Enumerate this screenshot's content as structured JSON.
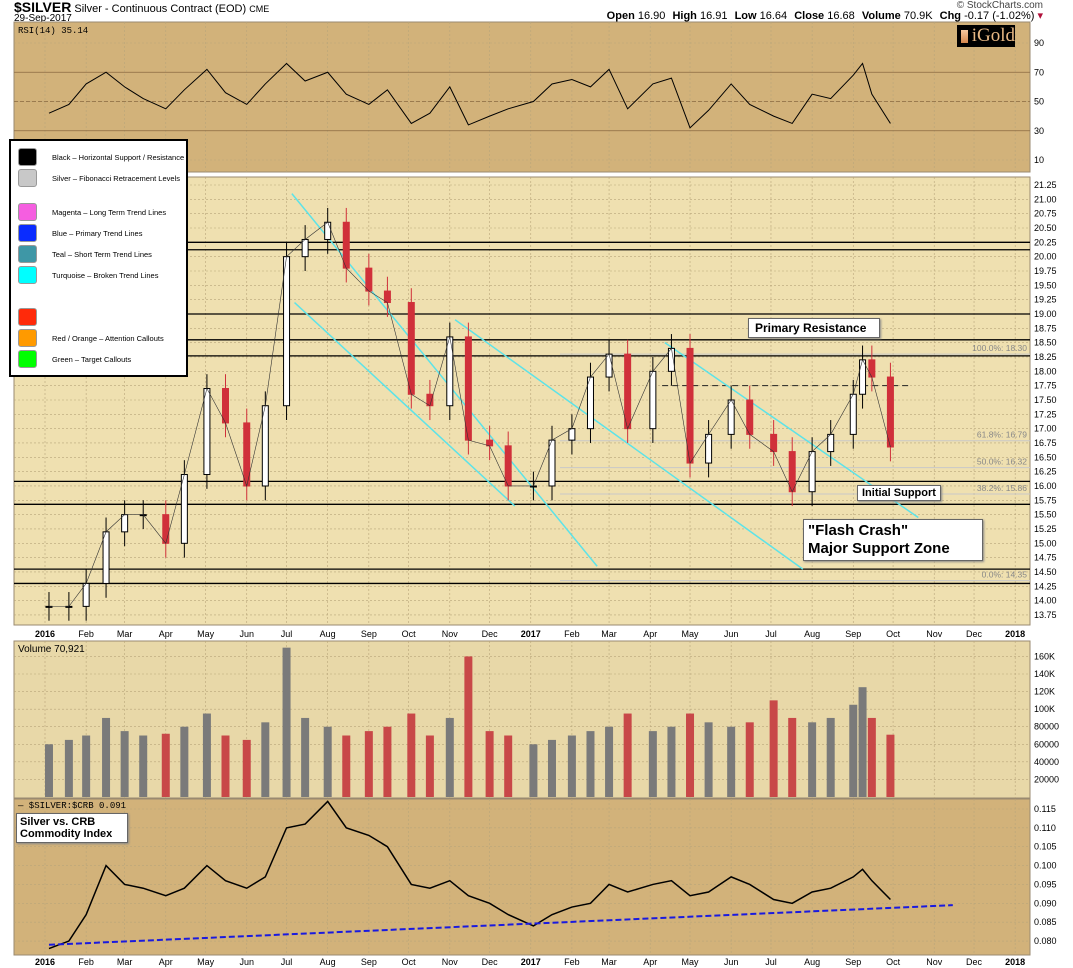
{
  "header": {
    "symbol": "$SILVER",
    "description": "Silver - Continuous Contract (EOD)",
    "exchange": "CME",
    "date": "29-Sep-2017",
    "copyright": "© StockCharts.com",
    "open_label": "Open",
    "open": "16.90",
    "high_label": "High",
    "high": "16.91",
    "low_label": "Low",
    "low": "16.64",
    "close_label": "Close",
    "close": "16.68",
    "volume_label": "Volume",
    "volume": "70.9K",
    "chg_label": "Chg",
    "chg": "-0.17 (-1.02%)",
    "chg_direction": "down"
  },
  "logo": "iGold",
  "legend": [
    {
      "color": "#000000",
      "label": "Black – Horizontal Support / Resistance"
    },
    {
      "color": "#c8c8c8",
      "label": "Silver – Fibonacci Retracement Levels"
    },
    {
      "color": "#f55ee0",
      "label": "Magenta – Long Term Trend Lines"
    },
    {
      "color": "#0a2cff",
      "label": "Blue – Primary Trend Lines"
    },
    {
      "color": "#3e97a6",
      "label": "Teal – Short Term Trend Lines"
    },
    {
      "color": "#00ffff",
      "label": "Turquoise – Broken Trend Lines"
    },
    {
      "color": "#ff2a0a",
      "label": ""
    },
    {
      "color": "#ff9a00",
      "label": "Red / Orange – Attention Callouts"
    },
    {
      "color": "#00ff00",
      "label": "Green – Target Callouts"
    }
  ],
  "callouts": {
    "primary_resistance": "Primary Resistance",
    "initial_support": "Initial Support",
    "flash_crash_1": "\"Flash Crash\"",
    "flash_crash_2": "Major Support Zone",
    "crb_1": "Silver vs. CRB",
    "crb_2": "Commodity Index"
  },
  "colors": {
    "panel_bg": "#d2b27a",
    "price_bg": "#efe0b0",
    "volume_bg": "#e8d8a8",
    "up": "#000000",
    "down": "#d0303a",
    "volume_up": "#7a7a7a",
    "volume_down": "#c84848",
    "trend": "#5de3e8",
    "fib": "#c8c8c8",
    "crb_trend": "#1a1adf"
  },
  "chart_data": [
    {
      "type": "line",
      "panel": "rsi",
      "label": "RSI(14) 35.14",
      "ylim": [
        0,
        100
      ],
      "yticks": [
        10,
        30,
        50,
        70,
        90
      ],
      "overbought": 70,
      "oversold": 30,
      "x": [
        "2016-01-04",
        "2016-01-19",
        "2016-02-01",
        "2016-02-16",
        "2016-03-01",
        "2016-03-15",
        "2016-04-01",
        "2016-04-15",
        "2016-05-02",
        "2016-05-16",
        "2016-06-01",
        "2016-06-15",
        "2016-07-01",
        "2016-07-15",
        "2016-08-01",
        "2016-08-15",
        "2016-09-01",
        "2016-09-15",
        "2016-10-03",
        "2016-10-17",
        "2016-11-01",
        "2016-11-15",
        "2016-12-01",
        "2016-12-15",
        "2017-01-03",
        "2017-01-17",
        "2017-02-01",
        "2017-02-15",
        "2017-03-01",
        "2017-03-15",
        "2017-04-03",
        "2017-04-17",
        "2017-05-01",
        "2017-05-15",
        "2017-06-01",
        "2017-06-15",
        "2017-07-03",
        "2017-07-17",
        "2017-08-01",
        "2017-08-15",
        "2017-09-01",
        "2017-09-08",
        "2017-09-15",
        "2017-09-29"
      ],
      "values": [
        42,
        48,
        62,
        70,
        60,
        52,
        45,
        58,
        72,
        56,
        48,
        62,
        76,
        64,
        70,
        55,
        48,
        58,
        35,
        42,
        60,
        34,
        40,
        45,
        50,
        62,
        65,
        60,
        72,
        45,
        62,
        66,
        32,
        44,
        62,
        48,
        40,
        35,
        55,
        52,
        68,
        76,
        55,
        35
      ]
    },
    {
      "type": "candlestick",
      "panel": "price",
      "ylim": [
        13.6,
        21.4
      ],
      "yticks": [
        13.75,
        14.0,
        14.25,
        14.5,
        14.75,
        15.0,
        15.25,
        15.5,
        15.75,
        16.0,
        16.25,
        16.5,
        16.75,
        17.0,
        17.25,
        17.5,
        17.75,
        18.0,
        18.25,
        18.5,
        18.75,
        19.0,
        19.25,
        19.5,
        19.75,
        20.0,
        20.25,
        20.5,
        20.75,
        21.0,
        21.25
      ],
      "x": [
        "2016-01-04",
        "2016-01-19",
        "2016-02-01",
        "2016-02-16",
        "2016-03-01",
        "2016-03-15",
        "2016-04-01",
        "2016-04-15",
        "2016-05-02",
        "2016-05-16",
        "2016-06-01",
        "2016-06-15",
        "2016-07-01",
        "2016-07-15",
        "2016-08-01",
        "2016-08-15",
        "2016-09-01",
        "2016-09-15",
        "2016-10-03",
        "2016-10-17",
        "2016-11-01",
        "2016-11-15",
        "2016-12-01",
        "2016-12-15",
        "2017-01-03",
        "2017-01-17",
        "2017-02-01",
        "2017-02-15",
        "2017-03-01",
        "2017-03-15",
        "2017-04-03",
        "2017-04-17",
        "2017-05-01",
        "2017-05-15",
        "2017-06-01",
        "2017-06-15",
        "2017-07-03",
        "2017-07-17",
        "2017-08-01",
        "2017-08-15",
        "2017-09-01",
        "2017-09-08",
        "2017-09-15",
        "2017-09-29"
      ],
      "close": [
        13.9,
        13.9,
        14.3,
        15.2,
        15.5,
        15.5,
        15.0,
        16.2,
        17.7,
        17.1,
        16.0,
        17.4,
        20.0,
        20.3,
        20.6,
        19.8,
        19.4,
        19.2,
        17.6,
        17.4,
        18.6,
        16.8,
        16.7,
        16.0,
        16.0,
        16.8,
        17.0,
        17.9,
        18.3,
        17.0,
        18.0,
        18.4,
        16.4,
        16.9,
        17.5,
        16.9,
        16.6,
        15.9,
        16.6,
        16.9,
        17.6,
        18.2,
        17.9,
        16.68
      ],
      "horizontal_levels": [
        20.25,
        20.12,
        19.0,
        18.55,
        18.27,
        16.08,
        15.68,
        14.55,
        14.3
      ],
      "dashed_level": {
        "value": 17.75,
        "from": "2017-04-10",
        "to": "2017-10-15"
      },
      "fibonacci": [
        {
          "label": "100.0%: 18.30",
          "value": 18.3
        },
        {
          "label": "61.8%: 16.79",
          "value": 16.79
        },
        {
          "label": "50.0%: 16.32",
          "value": 16.32
        },
        {
          "label": "38.2%: 15.86",
          "value": 15.86
        },
        {
          "label": "0.0%: 14.35",
          "value": 14.35
        }
      ],
      "trend_lines": [
        {
          "from": [
            "2016-07-05",
            21.1
          ],
          "to": [
            "2017-02-20",
            14.6
          ]
        },
        {
          "from": [
            "2016-07-07",
            19.2
          ],
          "to": [
            "2016-12-20",
            15.65
          ]
        },
        {
          "from": [
            "2016-11-05",
            18.9
          ],
          "to": [
            "2017-07-25",
            14.55
          ]
        },
        {
          "from": [
            "2017-04-12",
            18.5
          ],
          "to": [
            "2017-10-20",
            15.45
          ]
        }
      ]
    },
    {
      "type": "bar",
      "panel": "volume",
      "label": "Volume 70,921",
      "ylim": [
        0,
        170000
      ],
      "yticks": [
        20000,
        40000,
        60000,
        80000,
        100000,
        120000,
        140000,
        160000
      ],
      "ytick_labels": [
        "20000",
        "40000",
        "60000",
        "80000",
        "100K",
        "120K",
        "140K",
        "160K"
      ],
      "x": [
        "2016-01-04",
        "2016-01-19",
        "2016-02-01",
        "2016-02-16",
        "2016-03-01",
        "2016-03-15",
        "2016-04-01",
        "2016-04-15",
        "2016-05-02",
        "2016-05-16",
        "2016-06-01",
        "2016-06-15",
        "2016-07-01",
        "2016-07-15",
        "2016-08-01",
        "2016-08-15",
        "2016-09-01",
        "2016-09-15",
        "2016-10-03",
        "2016-10-17",
        "2016-11-01",
        "2016-11-15",
        "2016-12-01",
        "2016-12-15",
        "2017-01-03",
        "2017-01-17",
        "2017-02-01",
        "2017-02-15",
        "2017-03-01",
        "2017-03-15",
        "2017-04-03",
        "2017-04-17",
        "2017-05-01",
        "2017-05-15",
        "2017-06-01",
        "2017-06-15",
        "2017-07-03",
        "2017-07-17",
        "2017-08-01",
        "2017-08-15",
        "2017-09-01",
        "2017-09-08",
        "2017-09-15",
        "2017-09-29"
      ],
      "values": [
        60000,
        65000,
        70000,
        90000,
        75000,
        70000,
        72000,
        80000,
        95000,
        70000,
        65000,
        85000,
        170000,
        90000,
        80000,
        70000,
        75000,
        80000,
        95000,
        70000,
        90000,
        160000,
        75000,
        70000,
        60000,
        65000,
        70000,
        75000,
        80000,
        95000,
        75000,
        80000,
        95000,
        85000,
        80000,
        85000,
        110000,
        90000,
        85000,
        90000,
        105000,
        125000,
        90000,
        70921
      ]
    },
    {
      "type": "line",
      "panel": "ratio",
      "label": "$SILVER:$CRB 0.091",
      "ylim": [
        0.0775,
        0.118
      ],
      "yticks": [
        0.08,
        0.085,
        0.09,
        0.095,
        0.1,
        0.105,
        0.11,
        0.115
      ],
      "x": [
        "2016-01-04",
        "2016-01-19",
        "2016-02-01",
        "2016-02-16",
        "2016-03-01",
        "2016-03-15",
        "2016-04-01",
        "2016-04-15",
        "2016-05-02",
        "2016-05-16",
        "2016-06-01",
        "2016-06-15",
        "2016-07-01",
        "2016-07-15",
        "2016-08-01",
        "2016-08-15",
        "2016-09-01",
        "2016-09-15",
        "2016-10-03",
        "2016-10-17",
        "2016-11-01",
        "2016-11-15",
        "2016-12-01",
        "2016-12-15",
        "2017-01-03",
        "2017-01-17",
        "2017-02-01",
        "2017-02-15",
        "2017-03-01",
        "2017-03-15",
        "2017-04-03",
        "2017-04-17",
        "2017-05-01",
        "2017-05-15",
        "2017-06-01",
        "2017-06-15",
        "2017-07-03",
        "2017-07-17",
        "2017-08-01",
        "2017-08-15",
        "2017-09-01",
        "2017-09-08",
        "2017-09-15",
        "2017-09-29"
      ],
      "values": [
        0.078,
        0.08,
        0.087,
        0.1,
        0.095,
        0.094,
        0.092,
        0.094,
        0.1,
        0.096,
        0.094,
        0.097,
        0.11,
        0.111,
        0.117,
        0.11,
        0.108,
        0.105,
        0.095,
        0.094,
        0.096,
        0.092,
        0.09,
        0.087,
        0.084,
        0.087,
        0.089,
        0.09,
        0.095,
        0.093,
        0.095,
        0.096,
        0.092,
        0.093,
        0.097,
        0.095,
        0.091,
        0.09,
        0.093,
        0.094,
        0.097,
        0.099,
        0.096,
        0.091
      ],
      "trend_line": {
        "from": [
          "2016-01-04",
          0.079
        ],
        "to": [
          "2017-11-15",
          0.0895
        ]
      }
    },
    {
      "type": "axis",
      "x_tick_labels": [
        "2016",
        "Feb",
        "Mar",
        "Apr",
        "May",
        "Jun",
        "Jul",
        "Aug",
        "Sep",
        "Oct",
        "Nov",
        "Dec",
        "2017",
        "Feb",
        "Mar",
        "Apr",
        "May",
        "Jun",
        "Jul",
        "Aug",
        "Sep",
        "Oct",
        "Nov",
        "Dec",
        "2018"
      ]
    }
  ]
}
